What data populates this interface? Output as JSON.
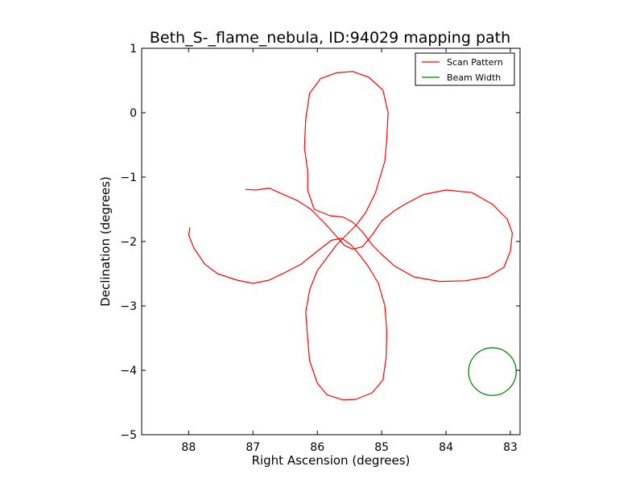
{
  "chart_data": {
    "type": "line",
    "title": "Beth_S-_flame_nebula, ID:94029 mapping path",
    "xlabel": "Right Ascension (degrees)",
    "ylabel": "Declination (degrees)",
    "xlim": [
      88.73,
      82.85
    ],
    "ylim": [
      -5,
      1
    ],
    "x_inverted": true,
    "xticks": [
      88,
      87,
      86,
      85,
      84,
      83
    ],
    "yticks": [
      1,
      0,
      -1,
      -2,
      -3,
      -4,
      -5
    ],
    "xtick_labels": [
      "88",
      "87",
      "86",
      "85",
      "84",
      "83"
    ],
    "ytick_labels": [
      "1",
      "0",
      "−1",
      "−2",
      "−3",
      "−4",
      "−5"
    ],
    "legend": {
      "position": "top-right",
      "entries": [
        "Scan Pattern",
        "Beam Width"
      ]
    },
    "series": [
      {
        "name": "Scan Pattern",
        "color": "#ff0000",
        "points": [
          [
            87.12,
            -1.19
          ],
          [
            86.95,
            -1.2
          ],
          [
            86.75,
            -1.17
          ],
          [
            86.55,
            -1.26
          ],
          [
            86.3,
            -1.37
          ],
          [
            86.1,
            -1.5
          ],
          [
            85.9,
            -1.7
          ],
          [
            85.72,
            -1.9
          ],
          [
            85.58,
            -2.06
          ],
          [
            85.45,
            -2.12
          ],
          [
            85.3,
            -2.08
          ],
          [
            85.15,
            -1.9
          ],
          [
            85.0,
            -1.68
          ],
          [
            84.8,
            -1.52
          ],
          [
            84.6,
            -1.4
          ],
          [
            84.35,
            -1.27
          ],
          [
            84.0,
            -1.2
          ],
          [
            83.6,
            -1.24
          ],
          [
            83.28,
            -1.42
          ],
          [
            83.05,
            -1.65
          ],
          [
            82.97,
            -1.87
          ],
          [
            83.0,
            -2.15
          ],
          [
            83.1,
            -2.4
          ],
          [
            83.35,
            -2.55
          ],
          [
            83.7,
            -2.61
          ],
          [
            84.1,
            -2.62
          ],
          [
            84.5,
            -2.55
          ],
          [
            84.8,
            -2.38
          ],
          [
            85.0,
            -2.2
          ],
          [
            85.15,
            -2.05
          ],
          [
            85.3,
            -1.85
          ],
          [
            85.45,
            -1.7
          ],
          [
            85.6,
            -1.62
          ],
          [
            85.8,
            -1.6
          ],
          [
            86.05,
            -1.5
          ],
          [
            86.15,
            -1.2
          ],
          [
            86.15,
            -0.9
          ],
          [
            86.2,
            -0.55
          ],
          [
            86.18,
            -0.1
          ],
          [
            86.12,
            0.3
          ],
          [
            85.95,
            0.53
          ],
          [
            85.7,
            0.62
          ],
          [
            85.45,
            0.64
          ],
          [
            85.2,
            0.55
          ],
          [
            84.98,
            0.35
          ],
          [
            84.9,
            0.0
          ],
          [
            84.92,
            -0.4
          ],
          [
            84.95,
            -0.75
          ],
          [
            85.1,
            -1.25
          ],
          [
            85.25,
            -1.55
          ],
          [
            85.4,
            -1.75
          ],
          [
            85.55,
            -1.9
          ],
          [
            85.7,
            -2.05
          ],
          [
            85.85,
            -2.25
          ],
          [
            86.0,
            -2.45
          ],
          [
            86.12,
            -2.75
          ],
          [
            86.18,
            -3.1
          ],
          [
            86.15,
            -3.5
          ],
          [
            86.12,
            -3.85
          ],
          [
            86.0,
            -4.2
          ],
          [
            85.85,
            -4.38
          ],
          [
            85.6,
            -4.46
          ],
          [
            85.4,
            -4.45
          ],
          [
            85.15,
            -4.35
          ],
          [
            84.98,
            -4.15
          ],
          [
            84.93,
            -3.8
          ],
          [
            84.92,
            -3.4
          ],
          [
            84.95,
            -3.0
          ],
          [
            85.05,
            -2.65
          ],
          [
            85.2,
            -2.4
          ],
          [
            85.35,
            -2.2
          ],
          [
            85.48,
            -2.05
          ],
          [
            85.62,
            -1.95
          ],
          [
            85.78,
            -1.98
          ],
          [
            86.0,
            -2.15
          ],
          [
            86.25,
            -2.35
          ],
          [
            86.5,
            -2.48
          ],
          [
            86.75,
            -2.6
          ],
          [
            87.0,
            -2.65
          ],
          [
            87.25,
            -2.6
          ],
          [
            87.55,
            -2.5
          ],
          [
            87.75,
            -2.35
          ],
          [
            87.92,
            -2.1
          ],
          [
            88.0,
            -1.9
          ],
          [
            87.98,
            -1.78
          ]
        ]
      },
      {
        "name": "Beam Width",
        "color": "#008000",
        "center": [
          83.28,
          -4.02
        ],
        "radius": 0.37
      }
    ]
  }
}
